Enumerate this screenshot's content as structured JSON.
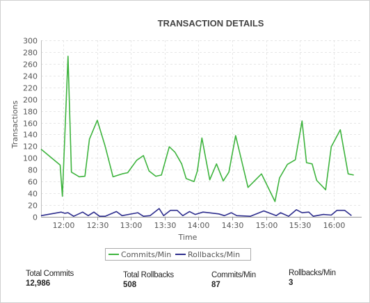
{
  "chart_data": {
    "type": "line",
    "title": "TRANSACTION DETAILS",
    "xlabel": "Time",
    "ylabel": "Transactions",
    "ylim": [
      0,
      300
    ],
    "yticks": [
      0,
      20,
      40,
      60,
      80,
      100,
      120,
      140,
      160,
      180,
      200,
      220,
      240,
      260,
      280,
      300
    ],
    "xlim": [
      "11:40",
      "16:25"
    ],
    "xticks": [
      "12:00",
      "12:30",
      "13:00",
      "13:30",
      "14:00",
      "14:30",
      "15:00",
      "15:30",
      "16:00"
    ],
    "grid": true,
    "legend": "bottom",
    "series": [
      {
        "name": "Commits/Min",
        "color": "#3cb33c",
        "points": [
          [
            "11:40",
            115
          ],
          [
            "11:57",
            88
          ],
          [
            "11:59",
            35
          ],
          [
            "12:04",
            273
          ],
          [
            "12:07",
            76
          ],
          [
            "12:14",
            68
          ],
          [
            "12:19",
            69
          ],
          [
            "12:23",
            132
          ],
          [
            "12:30",
            164
          ],
          [
            "12:37",
            120
          ],
          [
            "12:44",
            68
          ],
          [
            "12:52",
            73
          ],
          [
            "12:57",
            75
          ],
          [
            "13:05",
            96
          ],
          [
            "13:11",
            104
          ],
          [
            "13:16",
            78
          ],
          [
            "13:22",
            69
          ],
          [
            "13:27",
            71
          ],
          [
            "13:34",
            119
          ],
          [
            "13:39",
            110
          ],
          [
            "13:45",
            90
          ],
          [
            "13:49",
            65
          ],
          [
            "13:56",
            60
          ],
          [
            "13:59",
            78
          ],
          [
            "14:03",
            134
          ],
          [
            "14:10",
            63
          ],
          [
            "14:16",
            90
          ],
          [
            "14:22",
            61
          ],
          [
            "14:27",
            76
          ],
          [
            "14:33",
            138
          ],
          [
            "14:44",
            50
          ],
          [
            "14:56",
            73
          ],
          [
            "15:08",
            26
          ],
          [
            "15:12",
            66
          ],
          [
            "15:19",
            89
          ],
          [
            "15:26",
            97
          ],
          [
            "15:32",
            163
          ],
          [
            "15:36",
            92
          ],
          [
            "15:41",
            90
          ],
          [
            "15:45",
            62
          ],
          [
            "15:53",
            46
          ],
          [
            "15:58",
            119
          ],
          [
            "16:06",
            148
          ],
          [
            "16:13",
            73
          ],
          [
            "16:18",
            71
          ]
        ]
      },
      {
        "name": "Rollbacks/Min",
        "color": "#2b2b8c",
        "points": [
          [
            "11:40",
            2
          ],
          [
            "11:58",
            8
          ],
          [
            "12:01",
            6
          ],
          [
            "12:04",
            7
          ],
          [
            "12:09",
            1
          ],
          [
            "12:17",
            8
          ],
          [
            "12:22",
            2
          ],
          [
            "12:27",
            8
          ],
          [
            "12:32",
            1
          ],
          [
            "12:37",
            1
          ],
          [
            "12:47",
            9
          ],
          [
            "12:52",
            2
          ],
          [
            "13:06",
            7
          ],
          [
            "13:11",
            1
          ],
          [
            "13:17",
            2
          ],
          [
            "13:25",
            14
          ],
          [
            "13:29",
            2
          ],
          [
            "13:35",
            11
          ],
          [
            "13:41",
            11
          ],
          [
            "13:46",
            2
          ],
          [
            "13:52",
            9
          ],
          [
            "13:57",
            4
          ],
          [
            "14:04",
            8
          ],
          [
            "14:09",
            7
          ],
          [
            "14:18",
            5
          ],
          [
            "14:23",
            2
          ],
          [
            "14:29",
            7
          ],
          [
            "14:34",
            2
          ],
          [
            "14:46",
            1
          ],
          [
            "14:58",
            10
          ],
          [
            "15:09",
            2
          ],
          [
            "15:13",
            7
          ],
          [
            "15:20",
            1
          ],
          [
            "15:27",
            12
          ],
          [
            "15:32",
            7
          ],
          [
            "15:38",
            8
          ],
          [
            "15:42",
            1
          ],
          [
            "15:51",
            4
          ],
          [
            "15:58",
            3
          ],
          [
            "16:03",
            11
          ],
          [
            "16:10",
            11
          ],
          [
            "16:16",
            2
          ]
        ]
      }
    ]
  },
  "stats": [
    {
      "label": "Total Commits",
      "value": "12,986"
    },
    {
      "label": "Total Rollbacks",
      "value": "508"
    },
    {
      "label": "Commits/Min",
      "value": "87"
    },
    {
      "label": "Rollbacks/Min",
      "value": "3"
    }
  ]
}
